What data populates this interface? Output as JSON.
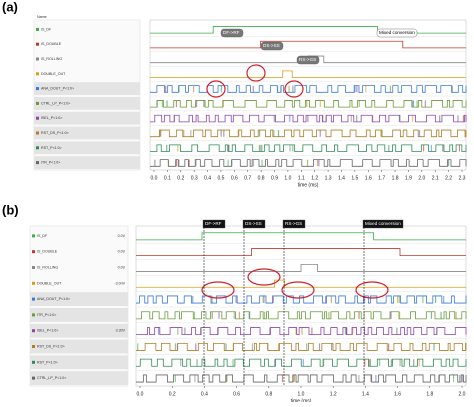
{
  "panel_a": {
    "label": "(a)",
    "header": "Name",
    "signals": [
      "IS_DF",
      "IS_DOUBLE",
      "IS_ROLLING",
      "DOUBLE_OUT",
      "ANA_DOUT_P<1:0>",
      "CTRL_LP_P<1:0>",
      "ISEL_P<1:0>",
      "RST_DS_P<1:0>",
      "RST_P<1:0>",
      "ITR_P<1:0>"
    ],
    "annotations": [
      "DF->RF",
      "DS->SS",
      "RS->GS",
      "Mixed conversion"
    ],
    "xticks": [
      "0.0",
      "0.1",
      "0.2",
      "0.3",
      "0.4",
      "0.5",
      "0.6",
      "0.7",
      "0.8",
      "0.9",
      "1.0",
      "1.1",
      "1.2",
      "1.3",
      "1.4",
      "1.5",
      "1.6",
      "1.7",
      "1.8",
      "1.9",
      "2.0",
      "2.1",
      "2.2",
      "2.3"
    ],
    "xlabel": "time (ms)"
  },
  "panel_b": {
    "label": "(b)",
    "signals": [
      "IS_DF",
      "IS_DOUBLE",
      "IS_ROLLING",
      "DOUBLE_OUT",
      "ANA_DOUT_P<1:0>",
      "ITR_P<1:0>",
      "ISEL_P<1:0>",
      "RST_DS_P<1:0>",
      "RST_P<1:0>",
      "CTRL_LP_P<1:0>"
    ],
    "readings": [
      "0.0V",
      "0.0V",
      "0.0V",
      "-3.0nV",
      "",
      "",
      "3.30V",
      "",
      "",
      ""
    ],
    "annotations": [
      "DF->RF",
      "DS->SS",
      "RS->GS",
      "Mixed conversion"
    ],
    "xticks": [
      "0.0",
      "0.2",
      "0.4",
      "0.6",
      "0.8",
      "1.0",
      "1.2",
      "1.4",
      "1.6",
      "1.8",
      "2.0"
    ],
    "xlabel": "time (ms)"
  }
}
